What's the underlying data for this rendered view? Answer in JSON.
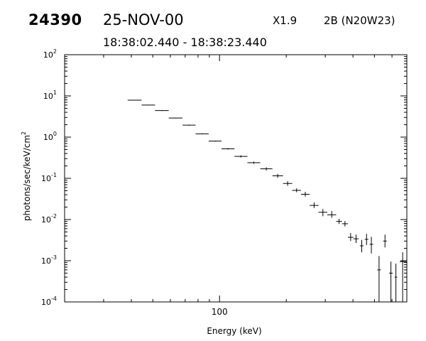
{
  "header": {
    "event_id": "24390",
    "date": "25-NOV-00",
    "goes_class": "X1.9",
    "flare": "2B (N20W23)",
    "time_range": "18:38:02.440 - 18:38:23.440"
  },
  "chart_data": {
    "type": "scatter",
    "title": "",
    "xlabel": "Energy (keV)",
    "ylabel": "photons/sec/keV/cm²",
    "x_scale": "log",
    "y_scale": "log",
    "xlim": [
      20,
      700
    ],
    "ylim": [
      0.0001,
      100
    ],
    "x_tick_labels": [
      {
        "value": 100,
        "label": "100"
      }
    ],
    "y_tick_labels": [
      {
        "value": 100,
        "base": "10",
        "exp": "2"
      },
      {
        "value": 10,
        "base": "10",
        "exp": "1"
      },
      {
        "value": 1,
        "base": "10",
        "exp": "0"
      },
      {
        "value": 0.1,
        "base": "10",
        "exp": "-1"
      },
      {
        "value": 0.01,
        "base": "10",
        "exp": "-2"
      },
      {
        "value": 0.001,
        "base": "10",
        "exp": "-3"
      },
      {
        "value": 0.0001,
        "base": "10",
        "exp": "-4"
      }
    ],
    "grid": false,
    "points": [
      {
        "x": 41.4,
        "xlo": 38.5,
        "xhi": 44.5,
        "y": 7.9,
        "ylo": 7.8,
        "yhi": 8.0
      },
      {
        "x": 47.8,
        "xlo": 44.5,
        "xhi": 51.2,
        "y": 6.0,
        "ylo": 5.9,
        "yhi": 6.1
      },
      {
        "x": 55.0,
        "xlo": 51.2,
        "xhi": 59.0,
        "y": 4.4,
        "ylo": 4.3,
        "yhi": 4.5
      },
      {
        "x": 63.4,
        "xlo": 59.0,
        "xhi": 68.1,
        "y": 2.9,
        "ylo": 2.85,
        "yhi": 2.95
      },
      {
        "x": 72.9,
        "xlo": 68.1,
        "xhi": 78.0,
        "y": 1.95,
        "ylo": 1.9,
        "yhi": 2.0
      },
      {
        "x": 83.5,
        "xlo": 78.0,
        "xhi": 89.3,
        "y": 1.2,
        "ylo": 1.17,
        "yhi": 1.23
      },
      {
        "x": 95.6,
        "xlo": 89.3,
        "xhi": 102.1,
        "y": 0.8,
        "ylo": 0.78,
        "yhi": 0.82
      },
      {
        "x": 109.2,
        "xlo": 102.1,
        "xhi": 116.8,
        "y": 0.52,
        "ylo": 0.5,
        "yhi": 0.54
      },
      {
        "x": 124.9,
        "xlo": 116.8,
        "xhi": 133.6,
        "y": 0.34,
        "ylo": 0.32,
        "yhi": 0.36
      },
      {
        "x": 142.8,
        "xlo": 133.6,
        "xhi": 152.7,
        "y": 0.24,
        "ylo": 0.225,
        "yhi": 0.255
      },
      {
        "x": 162.6,
        "xlo": 152.7,
        "xhi": 173.2,
        "y": 0.17,
        "ylo": 0.155,
        "yhi": 0.185
      },
      {
        "x": 183.0,
        "xlo": 173.2,
        "xhi": 193.4,
        "y": 0.115,
        "ylo": 0.103,
        "yhi": 0.128
      },
      {
        "x": 202.9,
        "xlo": 193.4,
        "xhi": 212.9,
        "y": 0.075,
        "ylo": 0.066,
        "yhi": 0.085
      },
      {
        "x": 222.7,
        "xlo": 212.9,
        "xhi": 233.0,
        "y": 0.051,
        "ylo": 0.046,
        "yhi": 0.057
      },
      {
        "x": 243.8,
        "xlo": 233.0,
        "xhi": 255.1,
        "y": 0.041,
        "ylo": 0.036,
        "yhi": 0.047
      },
      {
        "x": 267.1,
        "xlo": 255.1,
        "xhi": 279.7,
        "y": 0.022,
        "ylo": 0.019,
        "yhi": 0.026
      },
      {
        "x": 292.7,
        "xlo": 279.7,
        "xhi": 306.4,
        "y": 0.015,
        "ylo": 0.012,
        "yhi": 0.018
      },
      {
        "x": 320.8,
        "xlo": 306.4,
        "xhi": 335.9,
        "y": 0.013,
        "ylo": 0.011,
        "yhi": 0.016
      },
      {
        "x": 346.3,
        "xlo": 335.9,
        "xhi": 357.0,
        "y": 0.009,
        "ylo": 0.0078,
        "yhi": 0.0104
      },
      {
        "x": 368.0,
        "xlo": 357.0,
        "xhi": 379.4,
        "y": 0.0079,
        "ylo": 0.0068,
        "yhi": 0.0092
      },
      {
        "x": 390.4,
        "xlo": 379.4,
        "xhi": 401.8,
        "y": 0.0037,
        "ylo": 0.003,
        "yhi": 0.0047
      },
      {
        "x": 413.1,
        "xlo": 401.8,
        "xhi": 424.6,
        "y": 0.0034,
        "ylo": 0.0027,
        "yhi": 0.0043
      },
      {
        "x": 438.1,
        "xlo": 429.9,
        "xhi": 446.5,
        "y": 0.0023,
        "ylo": 0.0016,
        "yhi": 0.0032
      },
      {
        "x": 460.6,
        "xlo": 452.1,
        "xhi": 469.3,
        "y": 0.0033,
        "ylo": 0.0024,
        "yhi": 0.0045
      },
      {
        "x": 484.3,
        "xlo": 475.2,
        "xhi": 493.6,
        "y": 0.0025,
        "ylo": 0.0015,
        "yhi": 0.0038
      },
      {
        "x": 524.6,
        "xlo": 514.9,
        "xhi": 534.4,
        "y": 0.0006,
        "ylo": 0.0001,
        "yhi": 0.0013
      },
      {
        "x": 557.9,
        "xlo": 547.5,
        "xhi": 568.3,
        "y": 0.003,
        "ylo": 0.0021,
        "yhi": 0.0043
      },
      {
        "x": 593.4,
        "xlo": 582.4,
        "xhi": 604.4,
        "y": 0.0005,
        "ylo": 0.0001,
        "yhi": 0.00095
      },
      {
        "x": 624.9,
        "xlo": 616.4,
        "xhi": 633.2,
        "y": 0.0004,
        "ylo": 0.0001,
        "yhi": 0.00085
      },
      {
        "x": 670.3,
        "xlo": 650.6,
        "xhi": 700.0,
        "y": 0.00095,
        "ylo": 0.0001,
        "yhi": 0.0016
      }
    ]
  }
}
